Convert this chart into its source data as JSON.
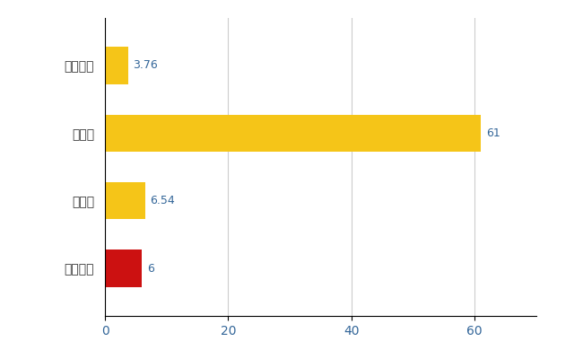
{
  "categories": [
    "たつの市",
    "県平均",
    "県最大",
    "全国平均"
  ],
  "values": [
    6,
    6.54,
    61,
    3.76
  ],
  "bar_colors": [
    "#cc1111",
    "#f5c518",
    "#f5c518",
    "#f5c518"
  ],
  "value_labels": [
    "6",
    "6.54",
    "61",
    "3.76"
  ],
  "xlim": [
    0,
    70
  ],
  "xticks": [
    0,
    20,
    40,
    60
  ],
  "background_color": "#ffffff",
  "grid_color": "#cccccc",
  "bar_height": 0.55,
  "label_fontsize": 9,
  "tick_fontsize": 10,
  "label_color": "#336699"
}
